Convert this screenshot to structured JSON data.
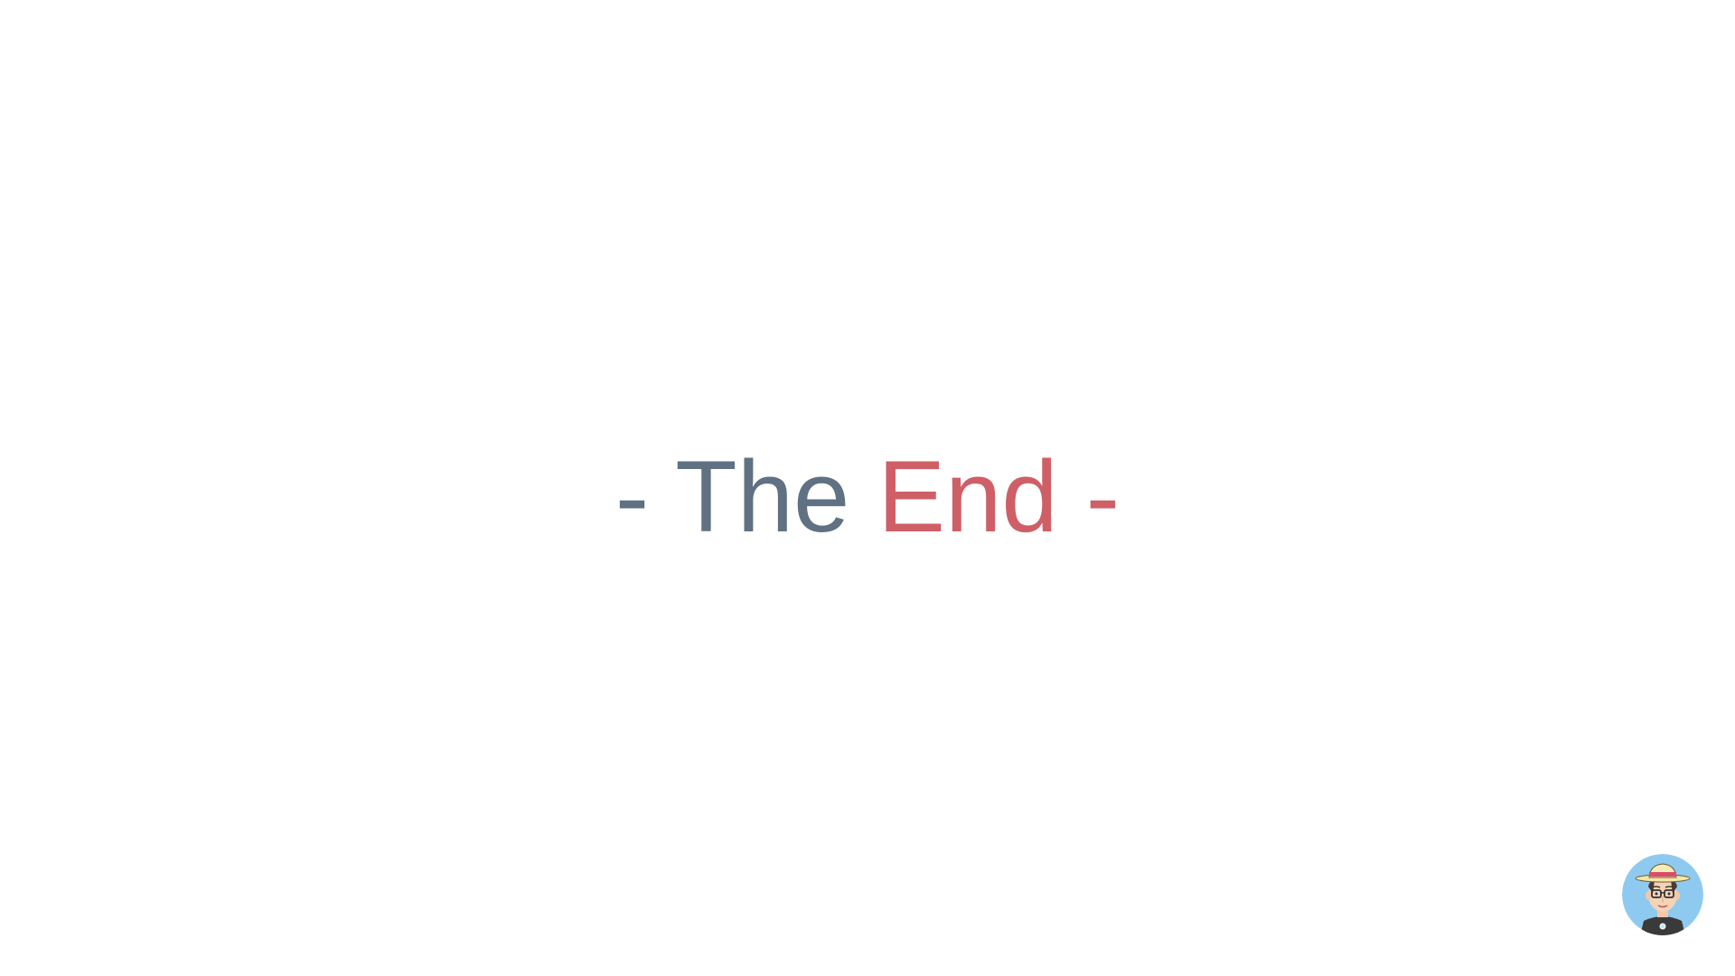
{
  "slide": {
    "headline": {
      "part_dark": "- The ",
      "part_accent": "End -"
    },
    "colors": {
      "dark": "#5f7182",
      "accent": "#cf5f66",
      "background": "#ffffff",
      "avatar_bg": "#8ecaf0"
    },
    "avatar_icon": "cartoon-avatar-with-hat-and-glasses"
  }
}
